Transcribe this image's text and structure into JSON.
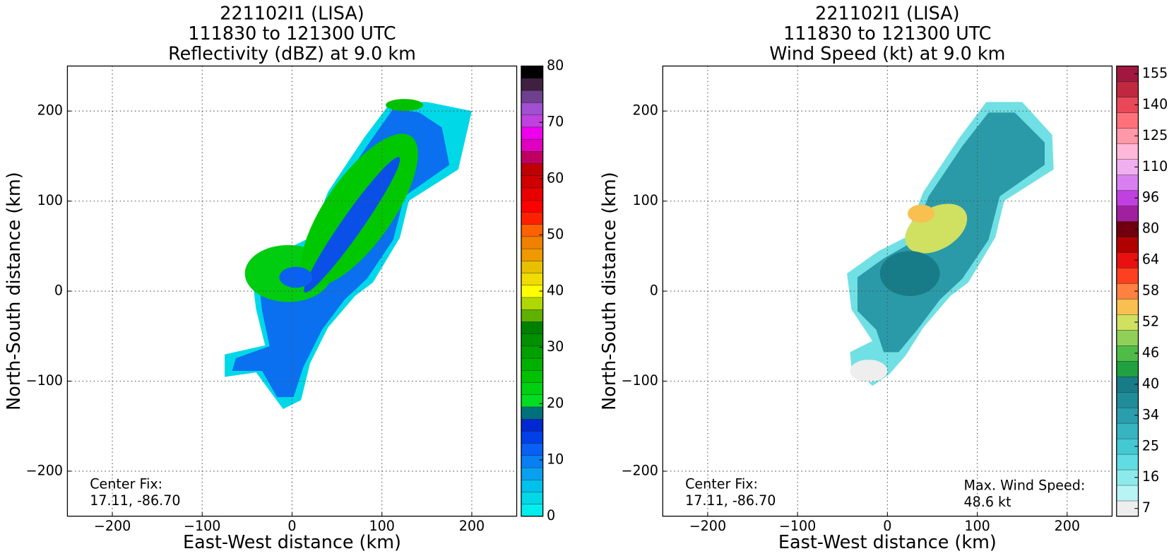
{
  "chart_data": [
    {
      "type": "map",
      "title": [
        "221102I1 (LISA)",
        "111830 to 121300 UTC",
        "Reflectivity (dBZ) at 9.0 km"
      ],
      "xlabel": "East-West distance (km)",
      "ylabel": "North-South distance (km)",
      "xlim": [
        -250,
        250
      ],
      "ylim": [
        -250,
        250
      ],
      "xticks": [
        {
          "value": -200,
          "label": "−200"
        },
        {
          "value": -100,
          "label": "−100"
        },
        0,
        100,
        200
      ],
      "yticks": [
        {
          "value": -200,
          "label": "−200"
        },
        {
          "value": -100,
          "label": "−100"
        },
        0,
        100,
        200
      ],
      "grid": true,
      "annotations": [
        "Center Fix:",
        "17.11, -86.70"
      ],
      "colorbar": {
        "scale": "linear",
        "lim": [
          0,
          80
        ],
        "ticks": [
          0,
          10,
          20,
          30,
          40,
          50,
          60,
          70,
          80
        ],
        "colors": [
          "#00eeee",
          "#00d8e8",
          "#00c0ec",
          "#0aa0f0",
          "#0880f4",
          "#0860f4",
          "#0040e8",
          "#0028d0",
          "#00707a",
          "#00dd22",
          "#00d010",
          "#00c000",
          "#00b000",
          "#00a000",
          "#009000",
          "#008000",
          "#60b000",
          "#b0d800",
          "#ffff00",
          "#f0dc00",
          "#e8c000",
          "#f09800",
          "#f08000",
          "#ff6000",
          "#ff2000",
          "#ff0000",
          "#e80000",
          "#d00000",
          "#c00000",
          "#c00060",
          "#e000c0",
          "#ee00ee",
          "#c040e0",
          "#a050d0",
          "#704090",
          "#402040",
          "#000000"
        ]
      }
    },
    {
      "type": "map",
      "title": [
        "221102I1 (LISA)",
        "111830 to 121300 UTC",
        "Wind Speed (kt) at 9.0 km"
      ],
      "xlabel": "East-West distance (km)",
      "ylabel": "North-South distance (km)",
      "xlim": [
        -250,
        250
      ],
      "ylim": [
        -250,
        250
      ],
      "xticks": [
        {
          "value": -200,
          "label": "−200"
        },
        {
          "value": -100,
          "label": "−100"
        },
        0,
        100,
        200
      ],
      "yticks": [
        {
          "value": -200,
          "label": "−200"
        },
        {
          "value": -100,
          "label": "−100"
        },
        0,
        100,
        200
      ],
      "grid": true,
      "annotations": [
        "Center Fix:",
        "17.11, -86.70"
      ],
      "max_annotations": [
        "Max. Wind Speed:",
        "48.6 kt"
      ],
      "colorbar": {
        "scale": "index",
        "ticks": [
          7,
          16,
          25,
          34,
          40,
          46,
          52,
          58,
          64,
          80,
          96,
          110,
          125,
          140,
          155
        ],
        "colors": [
          "#eeeeee",
          "#b8f4f4",
          "#8ceaec",
          "#60dce2",
          "#44c8d2",
          "#36b4c0",
          "#2a9eac",
          "#208c9a",
          "#187c88",
          "#20a040",
          "#50bc48",
          "#90d058",
          "#d0e060",
          "#f8c050",
          "#ff8040",
          "#ff4020",
          "#e81010",
          "#b00000",
          "#700010",
          "#a020a0",
          "#c040e0",
          "#d880f0",
          "#f0b0f0",
          "#ffb8d8",
          "#ff98a8",
          "#ff7078",
          "#e84858",
          "#c02840",
          "#a01840"
        ]
      }
    }
  ]
}
